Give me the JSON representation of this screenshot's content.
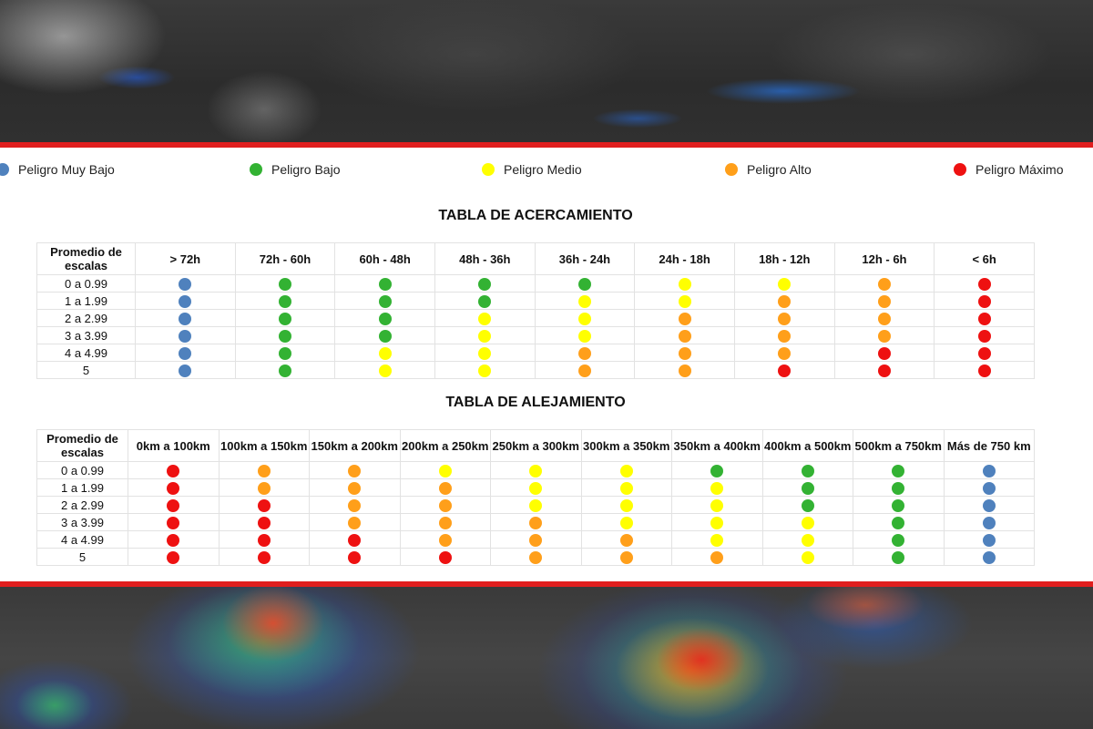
{
  "colors": {
    "muy_bajo": "#4f81bd",
    "bajo": "#33b233",
    "medio": "#ffff00",
    "alto": "#ff9f1a",
    "maximo": "#ee1111",
    "border_red": "#e01e1e"
  },
  "legend": [
    {
      "label": "Peligro Muy Bajo",
      "level": "muy_bajo"
    },
    {
      "label": "Peligro Bajo",
      "level": "bajo"
    },
    {
      "label": "Peligro Medio",
      "level": "medio"
    },
    {
      "label": "Peligro Alto",
      "level": "alto"
    },
    {
      "label": "Peligro Máximo",
      "level": "maximo"
    }
  ],
  "acercamiento": {
    "title": "TABLA DE ACERCAMIENTO",
    "corner_header": "Promedio de escalas",
    "columns": [
      "> 72h",
      "72h - 60h",
      "60h - 48h",
      "48h - 36h",
      "36h - 24h",
      "24h - 18h",
      "18h - 12h",
      "12h - 6h",
      "< 6h"
    ],
    "rows": [
      {
        "label": "0 a 0.99",
        "cells": [
          "muy_bajo",
          "bajo",
          "bajo",
          "bajo",
          "bajo",
          "medio",
          "medio",
          "alto",
          "maximo"
        ]
      },
      {
        "label": "1 a 1.99",
        "cells": [
          "muy_bajo",
          "bajo",
          "bajo",
          "bajo",
          "medio",
          "medio",
          "alto",
          "alto",
          "maximo"
        ]
      },
      {
        "label": "2 a 2.99",
        "cells": [
          "muy_bajo",
          "bajo",
          "bajo",
          "medio",
          "medio",
          "alto",
          "alto",
          "alto",
          "maximo"
        ]
      },
      {
        "label": "3 a 3.99",
        "cells": [
          "muy_bajo",
          "bajo",
          "bajo",
          "medio",
          "medio",
          "alto",
          "alto",
          "alto",
          "maximo"
        ]
      },
      {
        "label": "4 a 4.99",
        "cells": [
          "muy_bajo",
          "bajo",
          "medio",
          "medio",
          "alto",
          "alto",
          "alto",
          "maximo",
          "maximo"
        ]
      },
      {
        "label": "5",
        "cells": [
          "muy_bajo",
          "bajo",
          "medio",
          "medio",
          "alto",
          "alto",
          "maximo",
          "maximo",
          "maximo"
        ]
      }
    ]
  },
  "alejamiento": {
    "title": "TABLA DE ALEJAMIENTO",
    "corner_header": "Promedio de escalas",
    "columns": [
      "0km a 100km",
      "100km a 150km",
      "150km a 200km",
      "200km a 250km",
      "250km a 300km",
      "300km a 350km",
      "350km a 400km",
      "400km a 500km",
      "500km a 750km",
      "Más de 750 km"
    ],
    "rows": [
      {
        "label": "0 a 0.99",
        "cells": [
          "maximo",
          "alto",
          "alto",
          "medio",
          "medio",
          "medio",
          "bajo",
          "bajo",
          "bajo",
          "muy_bajo"
        ]
      },
      {
        "label": "1 a 1.99",
        "cells": [
          "maximo",
          "alto",
          "alto",
          "alto",
          "medio",
          "medio",
          "medio",
          "bajo",
          "bajo",
          "muy_bajo"
        ]
      },
      {
        "label": "2 a 2.99",
        "cells": [
          "maximo",
          "maximo",
          "alto",
          "alto",
          "medio",
          "medio",
          "medio",
          "bajo",
          "bajo",
          "muy_bajo"
        ]
      },
      {
        "label": "3 a 3.99",
        "cells": [
          "maximo",
          "maximo",
          "alto",
          "alto",
          "alto",
          "medio",
          "medio",
          "medio",
          "bajo",
          "muy_bajo"
        ]
      },
      {
        "label": "4 a 4.99",
        "cells": [
          "maximo",
          "maximo",
          "maximo",
          "alto",
          "alto",
          "alto",
          "medio",
          "medio",
          "bajo",
          "muy_bajo"
        ]
      },
      {
        "label": "5",
        "cells": [
          "maximo",
          "maximo",
          "maximo",
          "maximo",
          "alto",
          "alto",
          "alto",
          "medio",
          "bajo",
          "muy_bajo"
        ]
      }
    ]
  }
}
